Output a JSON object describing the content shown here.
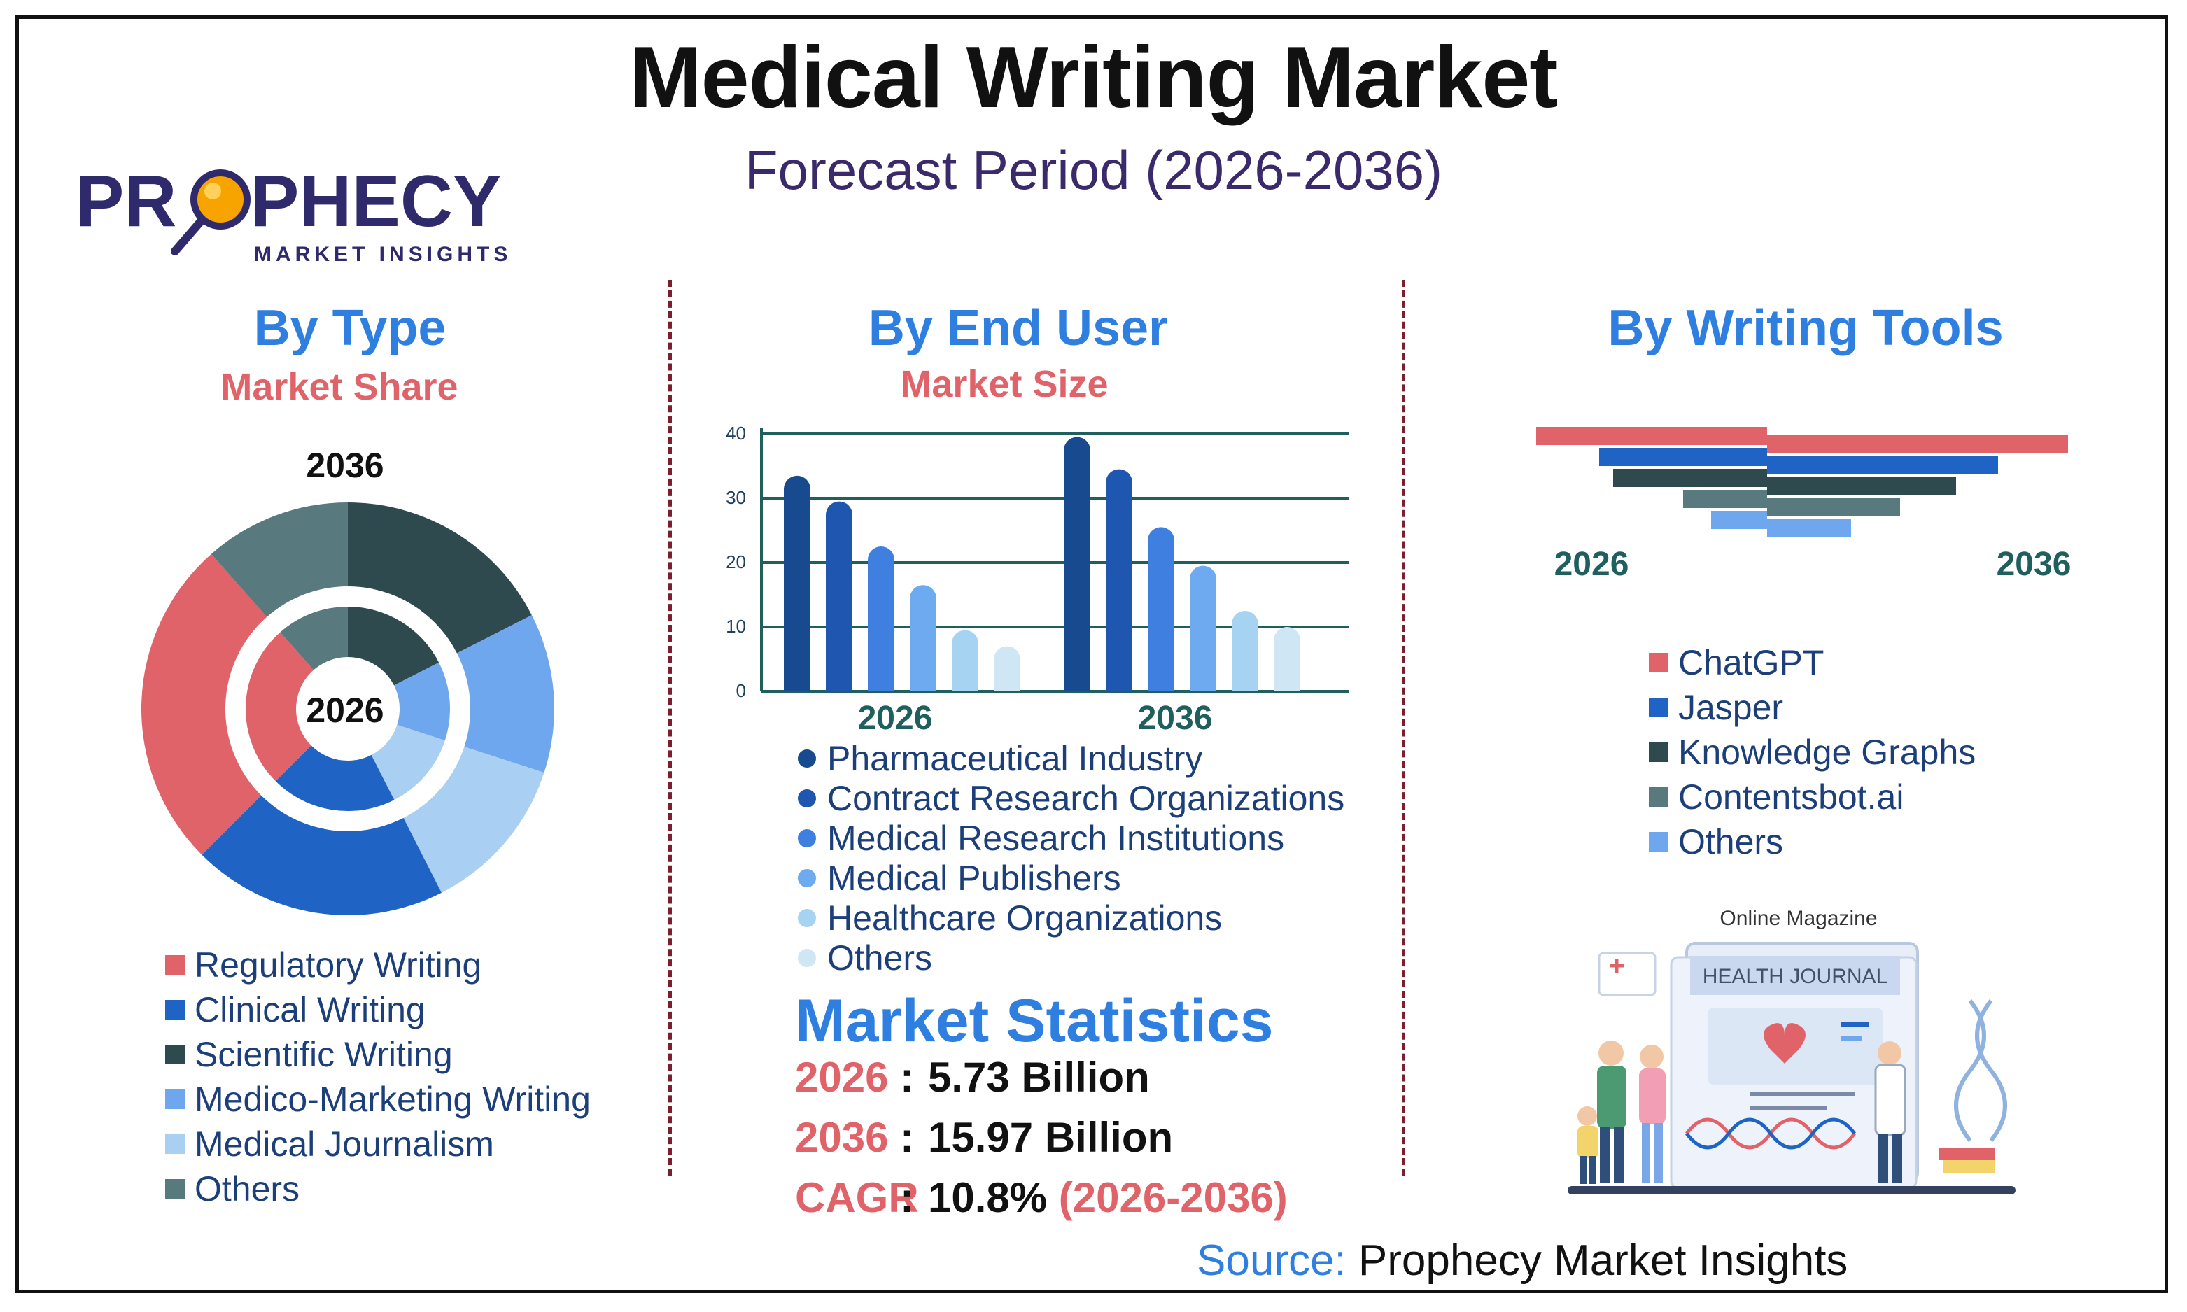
{
  "title": "Medical Writing Market",
  "subtitle": "Forecast Period (2026-2036)",
  "logo": {
    "name": "PROPHECY",
    "tagline": "MARKET INSIGHTS"
  },
  "colors": {
    "regulatory": "#e0636a",
    "clinical": "#1f63c4",
    "scientific": "#2e4a4e",
    "medico": "#6ea7ee",
    "journalism": "#a9d0f2",
    "others_type": "#58797d",
    "grid": "#1f5f5e",
    "axis": "#1f5f5e"
  },
  "by_type": {
    "heading": "By Type",
    "subheading": "Market Share",
    "outer_label": "2036",
    "inner_label": "2026",
    "legend": [
      {
        "label": "Regulatory Writing",
        "color": "#e0636a"
      },
      {
        "label": "Clinical Writing",
        "color": "#1f63c4"
      },
      {
        "label": "Scientific Writing",
        "color": "#2e4a4e"
      },
      {
        "label": "Medico-Marketing Writing",
        "color": "#6ea7ee"
      },
      {
        "label": "Medical Journalism",
        "color": "#a9d0f2"
      },
      {
        "label": "Others",
        "color": "#58797d"
      }
    ]
  },
  "by_end_user": {
    "heading": "By End User",
    "subheading": "Market Size",
    "legend": [
      {
        "label": "Pharmaceutical Industry",
        "color": "#174a8f"
      },
      {
        "label": "Contract Research Organizations",
        "color": "#1f57b0"
      },
      {
        "label": "Medical Research Institutions",
        "color": "#3f7fe0"
      },
      {
        "label": "Medical Publishers",
        "color": "#6eaaf0"
      },
      {
        "label": "Healthcare Organizations",
        "color": "#a7d3f3"
      },
      {
        "label": "Others",
        "color": "#cfe6f5"
      }
    ]
  },
  "by_writing_tools": {
    "heading": "By Writing Tools",
    "left_label": "2026",
    "right_label": "2036",
    "legend": [
      {
        "label": "ChatGPT",
        "color": "#e0636a"
      },
      {
        "label": "Jasper",
        "color": "#1f63c4"
      },
      {
        "label": "Knowledge Graphs",
        "color": "#2e4a4e"
      },
      {
        "label": "Contentsbot.ai",
        "color": "#58797d"
      },
      {
        "label": "Others",
        "color": "#6ea7ee"
      }
    ]
  },
  "stats": {
    "title": "Market Statistics",
    "rows": [
      {
        "key": "2026",
        "colon": ":",
        "value": "5.73 Billion",
        "suffix": ""
      },
      {
        "key": "2036",
        "colon": ":",
        "value": "15.97 Billion",
        "suffix": ""
      },
      {
        "key": "CAGR",
        "colon": ":",
        "value": "10.8%",
        "suffix": " (2026-2036)"
      }
    ]
  },
  "source": {
    "label": "Source:",
    "text": " Prophecy Market Insights"
  },
  "illustration": {
    "top_label": "Online Magazine",
    "journal_title": "HEALTH JOURNAL"
  },
  "chart_data": [
    {
      "type": "pie",
      "title": "By Type",
      "ring": "outer",
      "label": "2036",
      "categories": [
        "Scientific Writing",
        "Medico-Marketing Writing",
        "Medical Journalism",
        "Clinical Writing",
        "Regulatory Writing",
        "Others"
      ],
      "values": [
        17.5,
        12.5,
        12.5,
        20,
        26,
        11.5
      ],
      "colors": [
        "#2e4a4e",
        "#6ea7ee",
        "#a9d0f2",
        "#1f63c4",
        "#e0636a",
        "#58797d"
      ]
    },
    {
      "type": "pie",
      "title": "By Type",
      "ring": "inner",
      "label": "2026",
      "categories": [
        "Scientific Writing",
        "Medico-Marketing Writing",
        "Medical Journalism",
        "Clinical Writing",
        "Regulatory Writing",
        "Others"
      ],
      "values": [
        17.5,
        12.5,
        12.5,
        20,
        26,
        11.5
      ],
      "colors": [
        "#2e4a4e",
        "#6ea7ee",
        "#a9d0f2",
        "#1f63c4",
        "#e0636a",
        "#58797d"
      ]
    },
    {
      "type": "bar",
      "title": "By End User",
      "categories": [
        "2026",
        "2036"
      ],
      "ylim": [
        0,
        40
      ],
      "yticks": [
        0,
        10,
        20,
        30,
        40
      ],
      "grid": true,
      "series": [
        {
          "name": "Pharmaceutical Industry",
          "values": [
            33.5,
            39.5
          ],
          "color": "#174a8f"
        },
        {
          "name": "Contract Research Organizations",
          "values": [
            29.5,
            34.5
          ],
          "color": "#1f57b0"
        },
        {
          "name": "Medical Research Institutions",
          "values": [
            22.5,
            25.5
          ],
          "color": "#3f7fe0"
        },
        {
          "name": "Medical Publishers",
          "values": [
            16.5,
            19.5
          ],
          "color": "#6eaaf0"
        },
        {
          "name": "Healthcare Organizations",
          "values": [
            9.5,
            12.5
          ],
          "color": "#a7d3f3"
        },
        {
          "name": "Others",
          "values": [
            7,
            10
          ],
          "color": "#cfe6f5"
        }
      ]
    },
    {
      "type": "bar",
      "title": "By Writing Tools",
      "orientation": "horizontal-diverging",
      "categories": [
        "ChatGPT",
        "Jasper",
        "Knowledge Graphs",
        "Contentsbot.ai",
        "Others"
      ],
      "series": [
        {
          "name": "2026",
          "values": [
            33,
            24,
            22,
            12,
            8
          ]
        },
        {
          "name": "2036",
          "values": [
            43,
            33,
            27,
            19,
            12
          ]
        }
      ],
      "colors": [
        "#e0636a",
        "#1f63c4",
        "#2e4a4e",
        "#58797d",
        "#6ea7ee"
      ]
    }
  ]
}
